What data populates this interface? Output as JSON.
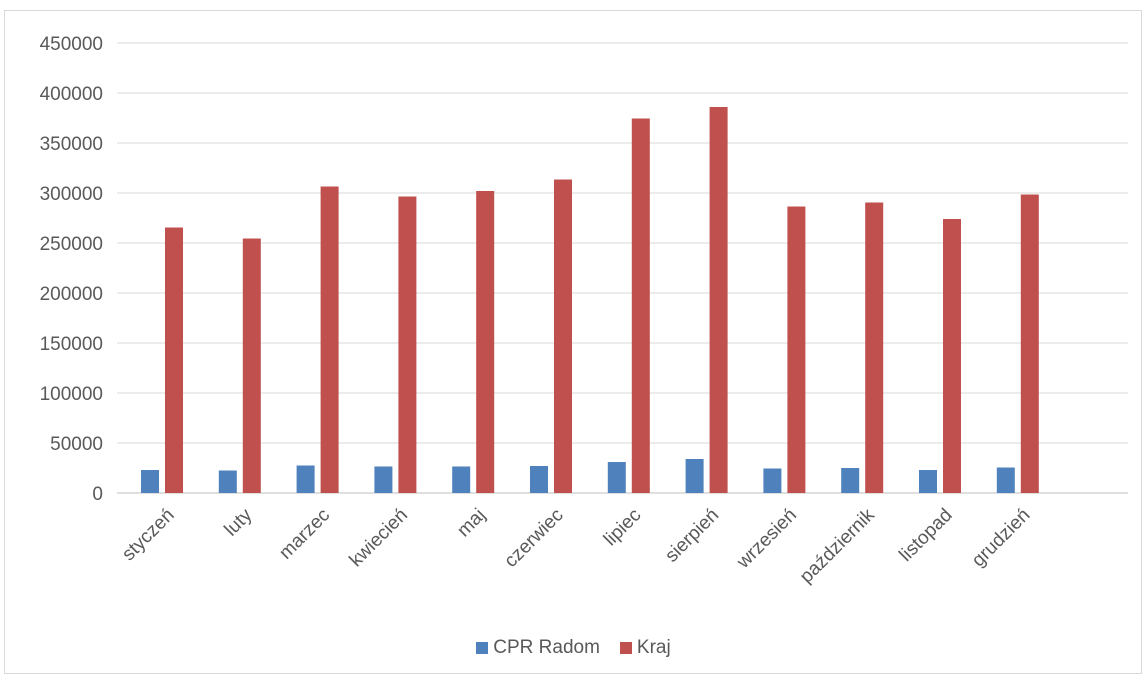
{
  "chart_data": {
    "type": "bar",
    "categories": [
      "styczeń",
      "luty",
      "marzec",
      "kwiecień",
      "maj",
      "czerwiec",
      "lipiec",
      "sierpień",
      "wrzesień",
      "październik",
      "listopad",
      "grudzień"
    ],
    "series": [
      {
        "name": "CPR Radom",
        "color": "#4f81bd",
        "values": [
          23000,
          22500,
          27500,
          26500,
          26500,
          27000,
          31000,
          34000,
          24500,
          25000,
          23000,
          25500
        ]
      },
      {
        "name": "Kraj",
        "color": "#c0504d",
        "values": [
          265500,
          254500,
          306500,
          296500,
          302000,
          313500,
          374500,
          386000,
          286500,
          290500,
          274000,
          298500
        ]
      }
    ],
    "yticks": [
      "0",
      "50000",
      "100000",
      "150000",
      "200000",
      "250000",
      "300000",
      "350000",
      "400000",
      "450000"
    ],
    "ylim": [
      0,
      450000
    ],
    "grid": true,
    "legend_position": "bottom",
    "title": "",
    "xlabel": "",
    "ylabel": ""
  }
}
